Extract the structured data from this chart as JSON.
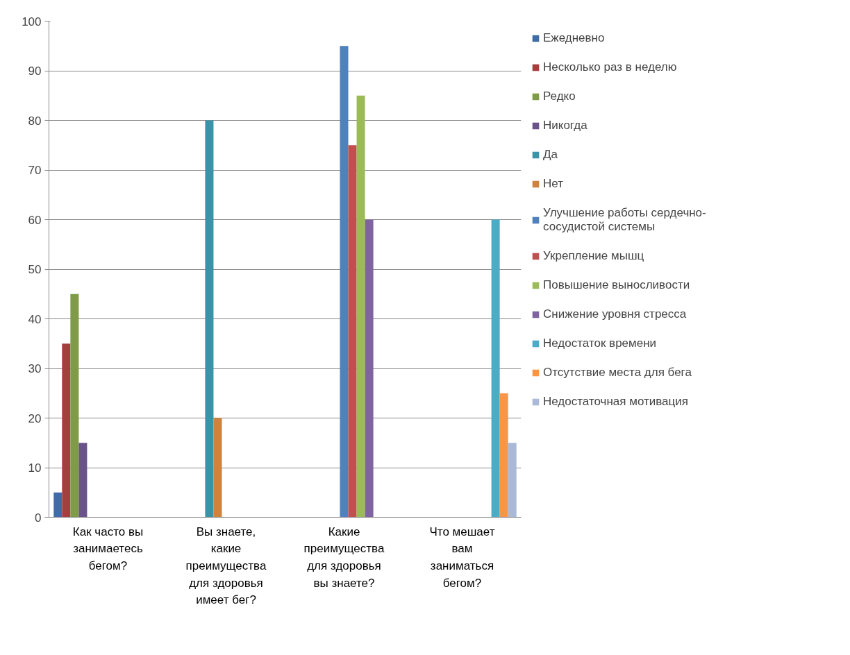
{
  "chart_data": {
    "type": "bar",
    "categories": [
      "Как часто вы занимаетесь бегом?",
      "Вы знаете, какие преимущества для здоровья имеет бег?",
      "Какие преимущества для здоровья вы знаете?",
      "Что мешает вам заниматься бегом?"
    ],
    "ylim": [
      0,
      100
    ],
    "yticks": [
      0,
      10,
      20,
      30,
      40,
      50,
      60,
      70,
      80,
      90,
      100
    ],
    "grid": "y",
    "legend": "right",
    "series": [
      {
        "name": "Ежедневно",
        "color": "#3f6ca6",
        "values": [
          5,
          null,
          null,
          null
        ]
      },
      {
        "name": "Несколько раз в неделю",
        "color": "#a33f3c",
        "values": [
          35,
          null,
          null,
          null
        ]
      },
      {
        "name": "Редко",
        "color": "#7f9b48",
        "values": [
          45,
          null,
          null,
          null
        ]
      },
      {
        "name": "Никогда",
        "color": "#6a5388",
        "values": [
          15,
          null,
          null,
          null
        ]
      },
      {
        "name": "Да",
        "color": "#3a93a8",
        "values": [
          null,
          80,
          null,
          null
        ]
      },
      {
        "name": "Нет",
        "color": "#d0833d",
        "values": [
          null,
          20,
          null,
          null
        ]
      },
      {
        "name": "Улучшение работы сердечно-сосудистой системы",
        "color": "#4f81bd",
        "values": [
          null,
          null,
          95,
          null
        ]
      },
      {
        "name": "Укрепление мышц",
        "color": "#c0504d",
        "values": [
          null,
          null,
          75,
          null
        ]
      },
      {
        "name": "Повышение выносливости",
        "color": "#9bbb59",
        "values": [
          null,
          null,
          85,
          null
        ]
      },
      {
        "name": "Снижение уровня стресса",
        "color": "#8064a2",
        "values": [
          null,
          null,
          60,
          null
        ]
      },
      {
        "name": "Недостаток времени",
        "color": "#4bacc6",
        "values": [
          null,
          null,
          null,
          60
        ]
      },
      {
        "name": "Отсутствие места для бега",
        "color": "#f79646",
        "values": [
          null,
          null,
          null,
          25
        ]
      },
      {
        "name": "Недостаточная мотивация",
        "color": "#aab9d8",
        "values": [
          null,
          null,
          null,
          15
        ]
      }
    ]
  }
}
